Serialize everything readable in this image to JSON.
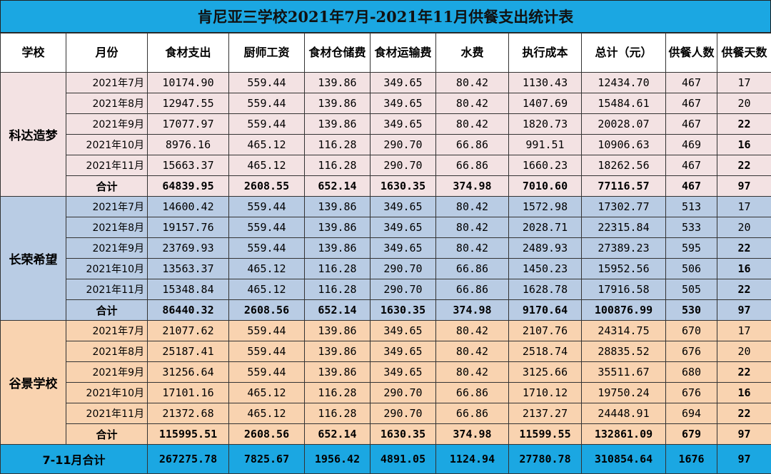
{
  "title": "肯尼亚三学校2021年7月-2021年11月供餐支出统计表",
  "headers": [
    "学校",
    "月份",
    "食材支出",
    "厨师工资",
    "食材仓储费",
    "食材运输费",
    "水费",
    "执行成本",
    "总计（元）",
    "供餐人数",
    "供餐天数"
  ],
  "colors": {
    "title_bg": "#1ba7e2",
    "group_1": "#f3e2e3",
    "group_2": "#b9cce4",
    "group_3": "#f9d3b0",
    "total_bg": "#1ba7e2"
  },
  "groups": [
    {
      "school": "科达造梦",
      "rows": [
        [
          "2021年7月",
          "10174.90",
          "559.44",
          "139.86",
          "349.65",
          "80.42",
          "1130.43",
          "12434.70",
          "467",
          "17"
        ],
        [
          "2021年8月",
          "12947.55",
          "559.44",
          "139.86",
          "349.65",
          "80.42",
          "1407.69",
          "15484.61",
          "467",
          "20"
        ],
        [
          "2021年9月",
          "17077.97",
          "559.44",
          "139.86",
          "349.65",
          "80.42",
          "1820.73",
          "20028.07",
          "467",
          "22"
        ],
        [
          "2021年10月",
          "8976.16",
          "465.12",
          "116.28",
          "290.70",
          "66.86",
          "991.51",
          "10906.63",
          "469",
          "16"
        ],
        [
          "2021年11月",
          "15663.37",
          "465.12",
          "116.28",
          "290.70",
          "66.86",
          "1660.23",
          "18262.56",
          "467",
          "22"
        ]
      ],
      "sum": [
        "合计",
        "64839.95",
        "2608.55",
        "652.14",
        "1630.35",
        "374.98",
        "7010.60",
        "77116.57",
        "467",
        "97"
      ]
    },
    {
      "school": "长荣希望",
      "rows": [
        [
          "2021年7月",
          "14600.42",
          "559.44",
          "139.86",
          "349.65",
          "80.42",
          "1572.98",
          "17302.77",
          "513",
          "17"
        ],
        [
          "2021年8月",
          "19157.76",
          "559.44",
          "139.86",
          "349.65",
          "80.42",
          "2028.71",
          "22315.84",
          "533",
          "20"
        ],
        [
          "2021年9月",
          "23769.93",
          "559.44",
          "139.86",
          "349.65",
          "80.42",
          "2489.93",
          "27389.23",
          "595",
          "22"
        ],
        [
          "2021年10月",
          "13563.37",
          "465.12",
          "116.28",
          "290.70",
          "66.86",
          "1450.23",
          "15952.56",
          "506",
          "16"
        ],
        [
          "2021年11月",
          "15348.84",
          "465.12",
          "116.28",
          "290.70",
          "66.86",
          "1628.78",
          "17916.58",
          "505",
          "22"
        ]
      ],
      "sum": [
        "合计",
        "86440.32",
        "2608.56",
        "652.14",
        "1630.35",
        "374.98",
        "9170.64",
        "100876.99",
        "530",
        "97"
      ]
    },
    {
      "school": "谷景学校",
      "rows": [
        [
          "2021年7月",
          "21077.62",
          "559.44",
          "139.86",
          "349.65",
          "80.42",
          "2107.76",
          "24314.75",
          "670",
          "17"
        ],
        [
          "2021年8月",
          "25187.41",
          "559.44",
          "139.86",
          "349.65",
          "80.42",
          "2518.74",
          "28835.52",
          "676",
          "20"
        ],
        [
          "2021年9月",
          "31256.64",
          "559.44",
          "139.86",
          "349.65",
          "80.42",
          "3125.66",
          "35511.67",
          "680",
          "22"
        ],
        [
          "2021年10月",
          "17101.16",
          "465.12",
          "116.28",
          "290.70",
          "66.86",
          "1710.12",
          "19750.24",
          "676",
          "16"
        ],
        [
          "2021年11月",
          "21372.68",
          "465.12",
          "116.28",
          "290.70",
          "66.86",
          "2137.27",
          "24448.91",
          "694",
          "22"
        ]
      ],
      "sum": [
        "合计",
        "115995.51",
        "2608.56",
        "652.14",
        "1630.35",
        "374.98",
        "11599.55",
        "132861.09",
        "679",
        "97"
      ]
    }
  ],
  "grand_total": [
    "7-11月合计",
    "267275.78",
    "7825.67",
    "1956.42",
    "4891.05",
    "1124.94",
    "27780.78",
    "310854.64",
    "1676",
    "97"
  ]
}
